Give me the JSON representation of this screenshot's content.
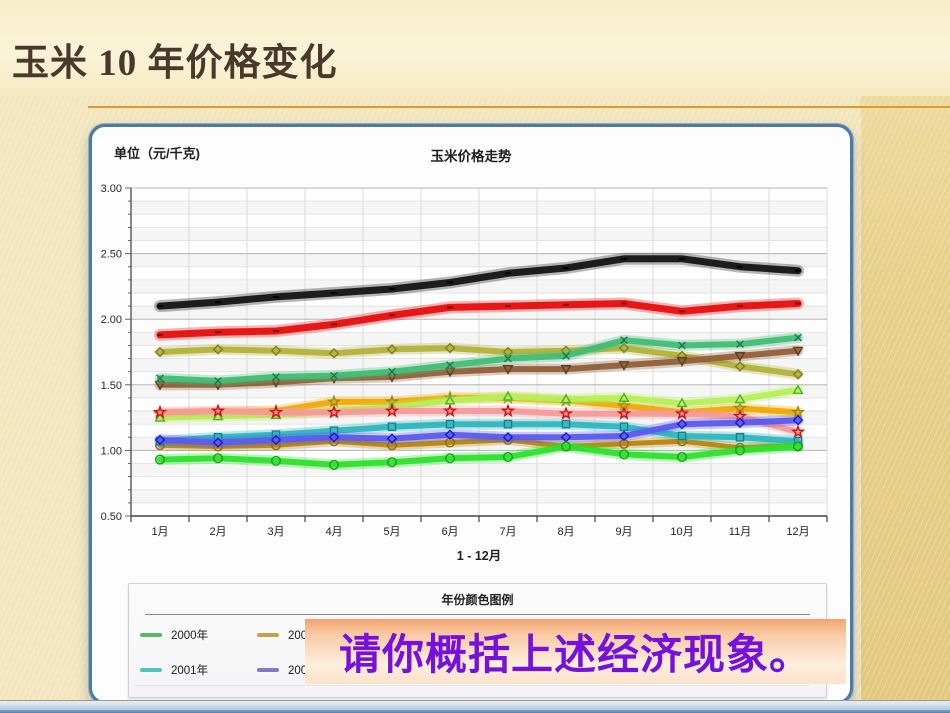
{
  "slide": {
    "title": "玉米 10 年价格变化"
  },
  "overlay": {
    "text": "请你概括上述经济现象。"
  },
  "chart": {
    "unit_label": "单位（元/千克)",
    "title": "玉米价格走势",
    "x_axis_label": "1 - 12月",
    "legend": {
      "title": "年份颜色图例",
      "items": [
        {
          "label": "2000年",
          "color": "#57b965"
        },
        {
          "label": "2002年",
          "color": "#c0a24a"
        },
        {
          "label": "2001年",
          "color": "#4cc3c7"
        },
        {
          "label": "2003年",
          "color": "#7b7ec4"
        }
      ]
    }
  },
  "colors": {
    "slide_background": "#f2e5bb",
    "title_text": "#49392a",
    "gold_rule": "#d89c33",
    "panel_border": "#4e7ba6",
    "overlay_gradient_top": "#f2a470",
    "overlay_text": "#7511dc"
  },
  "chart_data": {
    "type": "line",
    "title": "玉米价格走势",
    "xlabel": "1 - 12月",
    "ylabel": "单位（元/千克)",
    "x": [
      "1月",
      "2月",
      "3月",
      "4月",
      "5月",
      "6月",
      "7月",
      "8月",
      "9月",
      "10月",
      "11月",
      "12月"
    ],
    "ylim": [
      0.5,
      3.0
    ],
    "y_tick_labels": [
      "3.00",
      "2.50",
      "2.00",
      "1.50",
      "1.00",
      "0.50"
    ],
    "y_minor_step": 0.1,
    "grid": true,
    "legend_position": "bottom",
    "series": [
      {
        "name": "2002年",
        "color": "#b8860b",
        "marker": "circle",
        "marker_color": "#8f6a08",
        "width": 5,
        "values": [
          1.04,
          1.03,
          1.04,
          1.07,
          1.04,
          1.06,
          1.08,
          1.03,
          1.05,
          1.07,
          1.02,
          1.04
        ]
      },
      {
        "name": "unlabeled-gold",
        "color": "#efaa02",
        "marker": "star",
        "marker_color": "#9a8b16",
        "width": 6,
        "values": [
          1.28,
          1.29,
          1.3,
          1.37,
          1.37,
          1.4,
          1.4,
          1.38,
          1.34,
          1.29,
          1.32,
          1.29
        ]
      },
      {
        "name": "unlabeled-yellowgreen",
        "color": "#b6ef59",
        "marker": "triangle-up",
        "marker_color": "#4caf2e",
        "width": 6,
        "values": [
          1.25,
          1.26,
          1.27,
          1.3,
          1.33,
          1.38,
          1.41,
          1.39,
          1.4,
          1.36,
          1.39,
          1.46
        ]
      },
      {
        "name": "unlabeled-pink",
        "color": "#f59a9a",
        "marker": "star",
        "marker_color": "#cc1111",
        "width": 6,
        "values": [
          1.29,
          1.3,
          1.29,
          1.29,
          1.3,
          1.3,
          1.3,
          1.28,
          1.28,
          1.28,
          1.26,
          1.14
        ]
      },
      {
        "name": "2001年",
        "color": "#2eb6bf",
        "marker": "square",
        "marker_color": "#18808a",
        "width": 6,
        "values": [
          1.07,
          1.1,
          1.12,
          1.15,
          1.18,
          1.2,
          1.2,
          1.2,
          1.18,
          1.11,
          1.1,
          1.07
        ]
      },
      {
        "name": "2003年",
        "color": "#5b5bed",
        "marker": "diamond",
        "marker_color": "#1a1acc",
        "width": 6,
        "values": [
          1.08,
          1.06,
          1.08,
          1.1,
          1.09,
          1.12,
          1.1,
          1.1,
          1.11,
          1.2,
          1.21,
          1.23
        ]
      },
      {
        "name": "2000年",
        "color": "#2ee02e",
        "marker": "circle",
        "marker_color": "#13a313",
        "width": 6,
        "values": [
          0.93,
          0.94,
          0.92,
          0.89,
          0.91,
          0.94,
          0.95,
          1.03,
          0.97,
          0.95,
          1.0,
          1.03
        ]
      },
      {
        "name": "unlabeled-olive",
        "color": "#b3b23b",
        "marker": "diamond",
        "marker_color": "#7d7d1e",
        "width": 6,
        "values": [
          1.75,
          1.77,
          1.76,
          1.74,
          1.77,
          1.78,
          1.75,
          1.76,
          1.78,
          1.72,
          1.64,
          1.58
        ]
      },
      {
        "name": "unlabeled-brown",
        "color": "#91603a",
        "marker": "triangle-down",
        "marker_color": "#5f3e1f",
        "width": 6,
        "values": [
          1.5,
          1.5,
          1.52,
          1.55,
          1.56,
          1.6,
          1.62,
          1.62,
          1.65,
          1.68,
          1.72,
          1.76
        ]
      },
      {
        "name": "unlabeled-seagreen",
        "color": "#41bd75",
        "marker": "x",
        "marker_color": "#20784a",
        "width": 6,
        "values": [
          1.55,
          1.53,
          1.56,
          1.57,
          1.6,
          1.65,
          1.7,
          1.72,
          1.84,
          1.8,
          1.81,
          1.86
        ]
      },
      {
        "name": "unlabeled-red",
        "color": "#e60f0f",
        "marker": "dash",
        "marker_color": "#8b0000",
        "width": 7,
        "values": [
          1.88,
          1.9,
          1.91,
          1.96,
          2.03,
          2.09,
          2.1,
          2.11,
          2.12,
          2.06,
          2.1,
          2.12
        ]
      },
      {
        "name": "unlabeled-black",
        "color": "#151515",
        "marker": "dash",
        "marker_color": "#000000",
        "width": 7,
        "values": [
          2.1,
          2.13,
          2.17,
          2.2,
          2.23,
          2.28,
          2.35,
          2.39,
          2.46,
          2.46,
          2.4,
          2.37
        ]
      }
    ]
  }
}
